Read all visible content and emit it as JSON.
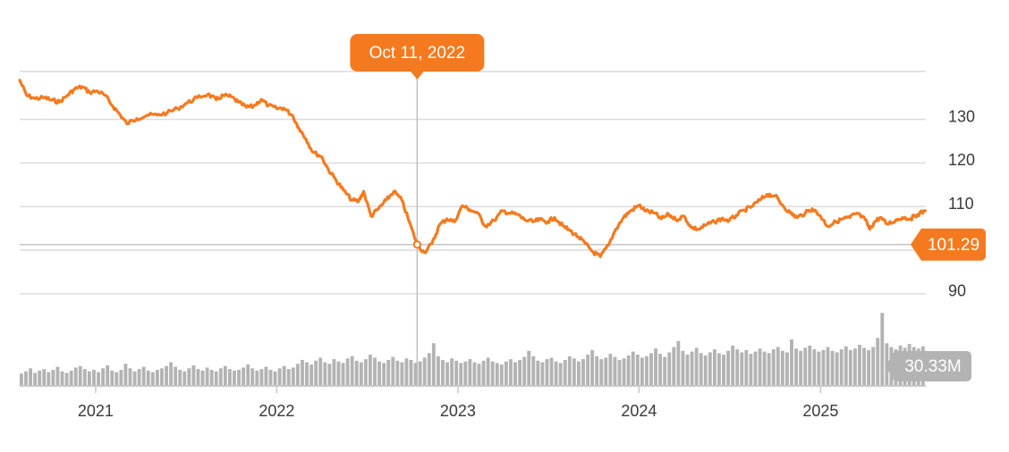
{
  "chart_data": {
    "type": "line",
    "title": "",
    "xlabel": "",
    "ylabel": "",
    "x_range": [
      "2020-08-01",
      "2025-08-01"
    ],
    "ylim": [
      83,
      141
    ],
    "y_ticks": [
      90,
      110,
      120,
      130
    ],
    "x_ticks": [
      {
        "label": "2021",
        "date": "2021-01-01"
      },
      {
        "label": "2022",
        "date": "2022-01-01"
      },
      {
        "label": "2023",
        "date": "2023-01-01"
      },
      {
        "label": "2024",
        "date": "2024-01-01"
      },
      {
        "label": "2025",
        "date": "2025-01-01"
      }
    ],
    "grid": true,
    "price_color": "#f57a1f",
    "volume_color": "#b3b3b3",
    "accent_color": "#f57a1f",
    "series": [
      {
        "type": "line",
        "points": [
          [
            "2020-08-01",
            139.0
          ],
          [
            "2020-08-15",
            135.5
          ],
          [
            "2020-09-01",
            134.8
          ],
          [
            "2020-09-20",
            135.0
          ],
          [
            "2020-10-05",
            134.4
          ],
          [
            "2020-10-20",
            134.0
          ],
          [
            "2020-11-05",
            135.5
          ],
          [
            "2020-11-20",
            137.0
          ],
          [
            "2020-12-05",
            137.5
          ],
          [
            "2020-12-20",
            136.2
          ],
          [
            "2021-01-05",
            136.5
          ],
          [
            "2021-01-20",
            135.5
          ],
          [
            "2021-02-05",
            133.0
          ],
          [
            "2021-02-20",
            131.0
          ],
          [
            "2021-03-05",
            129.0
          ],
          [
            "2021-03-25",
            130.2
          ],
          [
            "2021-04-15",
            131.0
          ],
          [
            "2021-05-05",
            131.0
          ],
          [
            "2021-05-25",
            131.5
          ],
          [
            "2021-06-15",
            132.5
          ],
          [
            "2021-07-05",
            133.8
          ],
          [
            "2021-07-25",
            135.0
          ],
          [
            "2021-08-15",
            135.8
          ],
          [
            "2021-09-01",
            134.5
          ],
          [
            "2021-09-15",
            135.5
          ],
          [
            "2021-10-01",
            135.2
          ],
          [
            "2021-10-15",
            134.0
          ],
          [
            "2021-11-01",
            132.8
          ],
          [
            "2021-11-15",
            133.0
          ],
          [
            "2021-12-01",
            134.6
          ],
          [
            "2021-12-15",
            133.2
          ],
          [
            "2022-01-01",
            132.5
          ],
          [
            "2022-01-15",
            132.6
          ],
          [
            "2022-02-01",
            131.0
          ],
          [
            "2022-02-15",
            128.0
          ],
          [
            "2022-03-01",
            125.5
          ],
          [
            "2022-03-15",
            122.5
          ],
          [
            "2022-04-01",
            121.5
          ],
          [
            "2022-04-15",
            118.5
          ],
          [
            "2022-05-01",
            116.0
          ],
          [
            "2022-05-15",
            113.8
          ],
          [
            "2022-06-01",
            111.5
          ],
          [
            "2022-06-15",
            111.2
          ],
          [
            "2022-06-25",
            113.5
          ],
          [
            "2022-07-10",
            107.8
          ],
          [
            "2022-07-25",
            109.5
          ],
          [
            "2022-08-10",
            111.5
          ],
          [
            "2022-08-25",
            113.5
          ],
          [
            "2022-09-10",
            111.5
          ],
          [
            "2022-09-25",
            106.5
          ],
          [
            "2022-10-11",
            101.29
          ],
          [
            "2022-10-25",
            99.5
          ],
          [
            "2022-11-10",
            101.5
          ],
          [
            "2022-11-25",
            105.8
          ],
          [
            "2022-12-10",
            107.2
          ],
          [
            "2022-12-25",
            106.5
          ],
          [
            "2023-01-10",
            110.2
          ],
          [
            "2023-01-25",
            109.3
          ],
          [
            "2023-02-10",
            108.5
          ],
          [
            "2023-02-25",
            105.5
          ],
          [
            "2023-03-15",
            106.8
          ],
          [
            "2023-04-01",
            109.0
          ],
          [
            "2023-04-15",
            108.5
          ],
          [
            "2023-05-01",
            108.2
          ],
          [
            "2023-05-15",
            107.0
          ],
          [
            "2023-06-01",
            106.5
          ],
          [
            "2023-06-15",
            107.0
          ],
          [
            "2023-07-01",
            106.5
          ],
          [
            "2023-07-15",
            107.5
          ],
          [
            "2023-08-01",
            105.5
          ],
          [
            "2023-08-15",
            104.5
          ],
          [
            "2023-09-01",
            103.0
          ],
          [
            "2023-09-15",
            101.5
          ],
          [
            "2023-10-01",
            99.5
          ],
          [
            "2023-10-15",
            98.5
          ],
          [
            "2023-11-01",
            101.2
          ],
          [
            "2023-11-15",
            104.8
          ],
          [
            "2023-12-01",
            107.5
          ],
          [
            "2023-12-15",
            109.0
          ],
          [
            "2024-01-01",
            110.3
          ],
          [
            "2024-01-15",
            109.0
          ],
          [
            "2024-02-01",
            108.5
          ],
          [
            "2024-02-15",
            107.2
          ],
          [
            "2024-03-01",
            108.2
          ],
          [
            "2024-03-15",
            107.0
          ],
          [
            "2024-04-01",
            107.8
          ],
          [
            "2024-04-15",
            105.2
          ],
          [
            "2024-05-01",
            104.8
          ],
          [
            "2024-05-15",
            105.8
          ],
          [
            "2024-06-01",
            106.5
          ],
          [
            "2024-06-15",
            107.2
          ],
          [
            "2024-07-01",
            106.8
          ],
          [
            "2024-07-15",
            108.0
          ],
          [
            "2024-08-01",
            109.2
          ],
          [
            "2024-08-15",
            110.0
          ],
          [
            "2024-09-01",
            111.5
          ],
          [
            "2024-09-15",
            112.8
          ],
          [
            "2024-10-01",
            112.5
          ],
          [
            "2024-10-15",
            110.5
          ],
          [
            "2024-11-01",
            108.5
          ],
          [
            "2024-11-15",
            107.5
          ],
          [
            "2024-12-01",
            108.5
          ],
          [
            "2024-12-15",
            109.5
          ],
          [
            "2025-01-01",
            107.8
          ],
          [
            "2025-01-15",
            105.5
          ],
          [
            "2025-02-01",
            106.5
          ],
          [
            "2025-02-15",
            107.2
          ],
          [
            "2025-03-01",
            107.5
          ],
          [
            "2025-03-15",
            108.5
          ],
          [
            "2025-04-01",
            107.0
          ],
          [
            "2025-04-10",
            104.8
          ],
          [
            "2025-04-20",
            106.5
          ],
          [
            "2025-05-01",
            107.5
          ],
          [
            "2025-05-15",
            106.0
          ],
          [
            "2025-06-01",
            106.8
          ],
          [
            "2025-06-15",
            107.5
          ],
          [
            "2025-07-01",
            107.2
          ],
          [
            "2025-07-15",
            108.2
          ],
          [
            "2025-07-31",
            109.0
          ]
        ]
      }
    ],
    "volume": {
      "labeled_value": "30.33M",
      "relative_values": [
        0.15,
        0.18,
        0.22,
        0.16,
        0.19,
        0.21,
        0.17,
        0.2,
        0.24,
        0.18,
        0.16,
        0.19,
        0.23,
        0.25,
        0.21,
        0.18,
        0.2,
        0.17,
        0.22,
        0.26,
        0.19,
        0.17,
        0.2,
        0.28,
        0.22,
        0.18,
        0.21,
        0.24,
        0.19,
        0.17,
        0.2,
        0.22,
        0.25,
        0.3,
        0.24,
        0.2,
        0.18,
        0.22,
        0.26,
        0.21,
        0.19,
        0.23,
        0.2,
        0.18,
        0.22,
        0.25,
        0.21,
        0.19,
        0.2,
        0.23,
        0.27,
        0.22,
        0.19,
        0.21,
        0.24,
        0.2,
        0.18,
        0.22,
        0.25,
        0.21,
        0.23,
        0.28,
        0.33,
        0.3,
        0.27,
        0.32,
        0.36,
        0.3,
        0.28,
        0.34,
        0.31,
        0.29,
        0.35,
        0.38,
        0.32,
        0.3,
        0.34,
        0.4,
        0.36,
        0.31,
        0.29,
        0.33,
        0.37,
        0.32,
        0.3,
        0.35,
        0.33,
        0.29,
        0.31,
        0.36,
        0.42,
        0.55,
        0.38,
        0.33,
        0.3,
        0.35,
        0.32,
        0.29,
        0.31,
        0.34,
        0.3,
        0.28,
        0.32,
        0.36,
        0.31,
        0.29,
        0.27,
        0.31,
        0.34,
        0.3,
        0.33,
        0.37,
        0.45,
        0.38,
        0.32,
        0.3,
        0.34,
        0.36,
        0.31,
        0.29,
        0.33,
        0.38,
        0.35,
        0.31,
        0.34,
        0.4,
        0.46,
        0.38,
        0.34,
        0.36,
        0.41,
        0.37,
        0.33,
        0.35,
        0.39,
        0.44,
        0.4,
        0.36,
        0.38,
        0.42,
        0.48,
        0.41,
        0.37,
        0.43,
        0.5,
        0.58,
        0.45,
        0.4,
        0.44,
        0.49,
        0.42,
        0.39,
        0.43,
        0.47,
        0.42,
        0.4,
        0.45,
        0.52,
        0.47,
        0.43,
        0.46,
        0.41,
        0.44,
        0.48,
        0.44,
        0.42,
        0.47,
        0.5,
        0.45,
        0.43,
        0.6,
        0.48,
        0.45,
        0.49,
        0.52,
        0.47,
        0.44,
        0.46,
        0.5,
        0.45,
        0.43,
        0.47,
        0.51,
        0.46,
        0.48,
        0.53,
        0.49,
        0.46,
        0.5,
        0.62,
        0.95,
        0.55,
        0.5,
        0.47,
        0.52,
        0.49,
        0.54,
        0.5,
        0.48,
        0.51
      ]
    }
  },
  "crosshair": {
    "date_label": "Oct 11, 2022",
    "value_label": "101.29"
  }
}
